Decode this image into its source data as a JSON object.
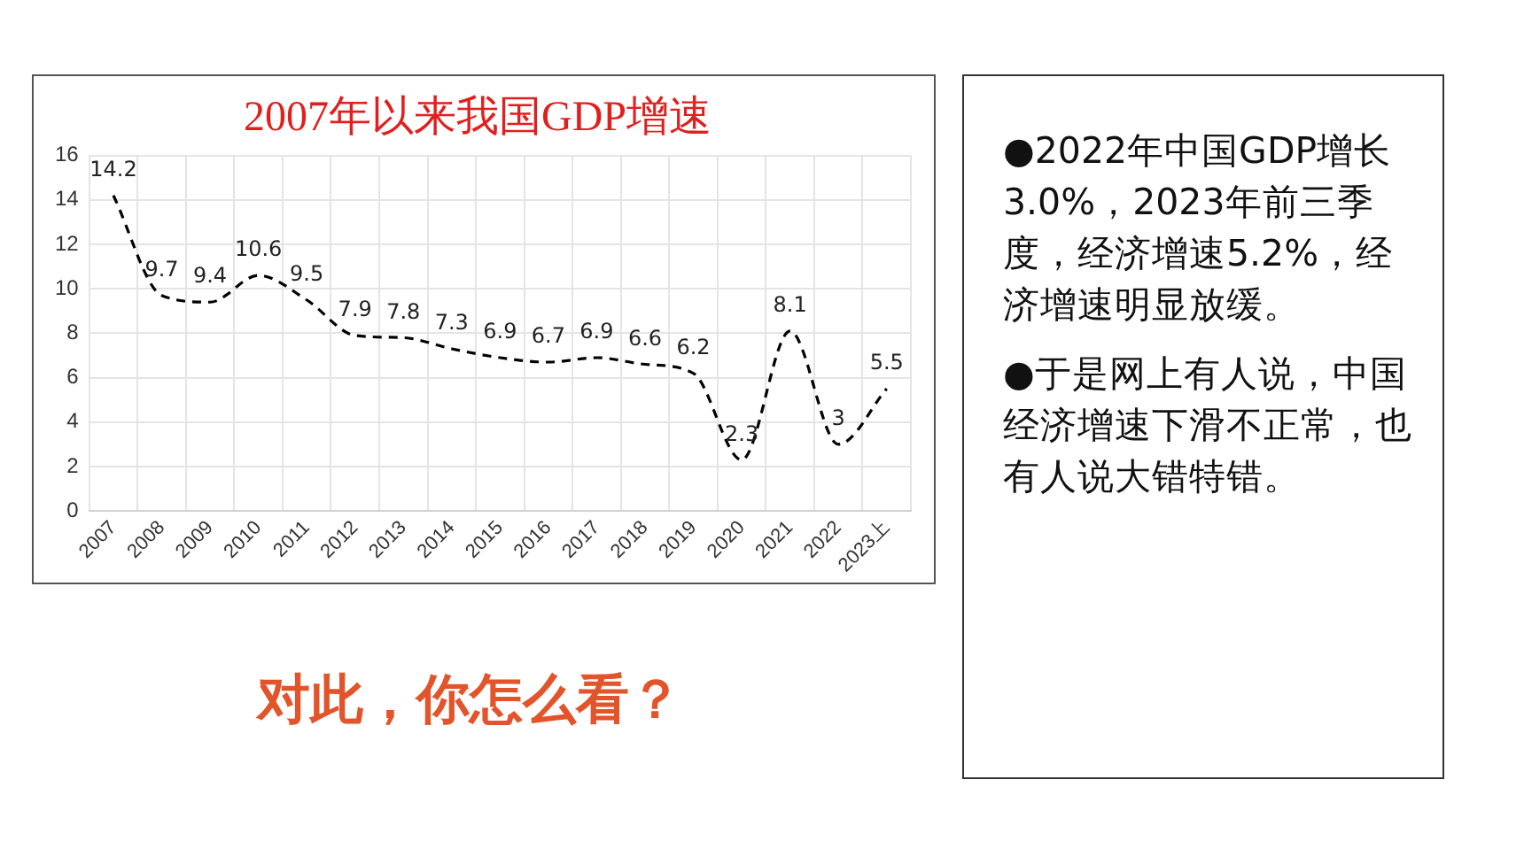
{
  "chart_data": {
    "type": "line",
    "title": "2007年以来我国GDP增速",
    "categories": [
      "2007",
      "2008",
      "2009",
      "2010",
      "2011",
      "2012",
      "2013",
      "2014",
      "2015",
      "2016",
      "2017",
      "2018",
      "2019",
      "2020",
      "2021",
      "2022",
      "2023上"
    ],
    "series": [
      {
        "color": "#000000",
        "values": [
          14.2,
          9.7,
          9.4,
          10.6,
          9.5,
          7.9,
          7.8,
          7.3,
          6.9,
          6.7,
          6.9,
          6.6,
          6.2,
          2.3,
          8.1,
          3,
          5.5
        ]
      }
    ],
    "ylim": [
      0,
      16
    ],
    "yticks": [
      0,
      2,
      4,
      6,
      8,
      10,
      12,
      14,
      16
    ],
    "grid": true,
    "data_labels": true,
    "marker": "none",
    "line_style": "dashed",
    "legend": false,
    "annotations": [
      "●2022年中国GDP增长3.0%，2023年前三季度，经济增速5.2%，经济增速明显放缓。",
      "●于是网上有人说，中国经济增速下滑不正常，也有人说大错特错。",
      "对此，你怎么看？"
    ]
  }
}
